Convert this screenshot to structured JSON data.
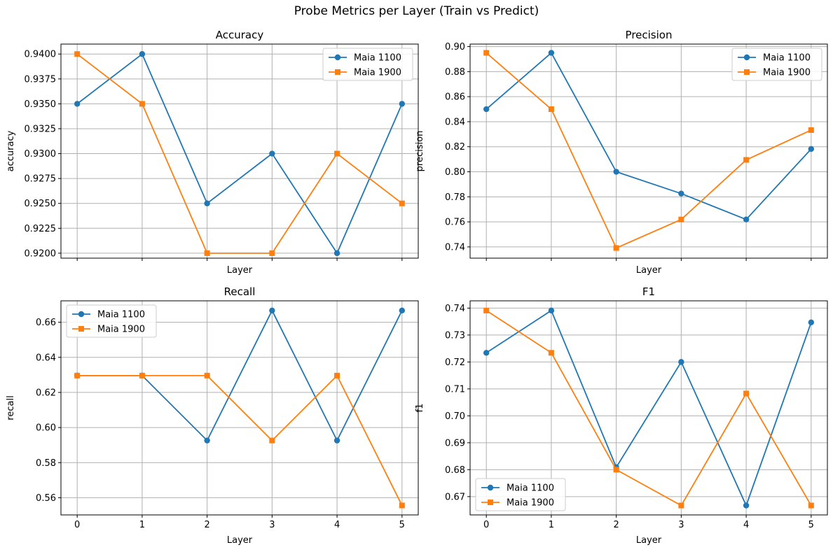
{
  "figure": {
    "title": "Probe Metrics per Layer (Train vs Predict)"
  },
  "colors": {
    "series_0": "#1f77b4",
    "series_1": "#ff7f0e",
    "grid": "#b0b0b0"
  },
  "chart_data": [
    {
      "type": "line",
      "title": "Accuracy",
      "xlabel": "Layer",
      "ylabel": "accuracy",
      "x": [
        0,
        1,
        2,
        3,
        4,
        5
      ],
      "xticks": [],
      "ylim": [
        0.9195,
        0.941
      ],
      "yticks": [
        "0.9200",
        "0.9225",
        "0.9250",
        "0.9275",
        "0.9300",
        "0.9325",
        "0.9350",
        "0.9375",
        "0.9400"
      ],
      "grid": true,
      "legend_position": "upper right",
      "series": [
        {
          "name": "Maia 1100",
          "marker": "circle",
          "values": [
            0.935,
            0.94,
            0.925,
            0.93,
            0.92,
            0.935
          ]
        },
        {
          "name": "Maia 1900",
          "marker": "square",
          "values": [
            0.94,
            0.935,
            0.92,
            0.92,
            0.93,
            0.925
          ]
        }
      ]
    },
    {
      "type": "line",
      "title": "Precision",
      "xlabel": "Layer",
      "ylabel": "precision",
      "x": [
        0,
        1,
        2,
        3,
        4,
        5
      ],
      "xticks": [],
      "ylim": [
        0.731,
        0.902
      ],
      "yticks": [
        "0.74",
        "0.76",
        "0.78",
        "0.80",
        "0.82",
        "0.84",
        "0.86",
        "0.88",
        "0.90"
      ],
      "grid": true,
      "legend_position": "upper right",
      "series": [
        {
          "name": "Maia 1100",
          "marker": "circle",
          "values": [
            0.85,
            0.895,
            0.8,
            0.7826,
            0.7619,
            0.8182
          ]
        },
        {
          "name": "Maia 1900",
          "marker": "square",
          "values": [
            0.895,
            0.85,
            0.7391,
            0.7619,
            0.8095,
            0.8333
          ]
        }
      ]
    },
    {
      "type": "line",
      "title": "Recall",
      "xlabel": "Layer",
      "ylabel": "recall",
      "x": [
        0,
        1,
        2,
        3,
        4,
        5
      ],
      "xticks": [
        "0",
        "1",
        "2",
        "3",
        "4",
        "5"
      ],
      "ylim": [
        0.5502,
        0.6722
      ],
      "yticks": [
        "0.56",
        "0.58",
        "0.60",
        "0.62",
        "0.64",
        "0.66"
      ],
      "grid": true,
      "legend_position": "upper left",
      "series": [
        {
          "name": "Maia 1100",
          "marker": "circle",
          "values": [
            0.6296,
            0.6296,
            0.5926,
            0.6667,
            0.5926,
            0.6667
          ]
        },
        {
          "name": "Maia 1900",
          "marker": "square",
          "values": [
            0.6296,
            0.6296,
            0.6296,
            0.5926,
            0.6296,
            0.5556
          ]
        }
      ]
    },
    {
      "type": "line",
      "title": "F1",
      "xlabel": "Layer",
      "ylabel": "f1",
      "x": [
        0,
        1,
        2,
        3,
        4,
        5
      ],
      "xticks": [
        "0",
        "1",
        "2",
        "3",
        "4",
        "5"
      ],
      "ylim": [
        0.6632,
        0.7427
      ],
      "yticks": [
        "0.67",
        "0.68",
        "0.69",
        "0.70",
        "0.71",
        "0.72",
        "0.73",
        "0.74"
      ],
      "grid": true,
      "legend_position": "lower left",
      "series": [
        {
          "name": "Maia 1100",
          "marker": "circle",
          "values": [
            0.7234,
            0.7391,
            0.6809,
            0.72,
            0.6667,
            0.7347
          ]
        },
        {
          "name": "Maia 1900",
          "marker": "square",
          "values": [
            0.7391,
            0.7234,
            0.68,
            0.6667,
            0.7083,
            0.6667
          ]
        }
      ]
    }
  ]
}
